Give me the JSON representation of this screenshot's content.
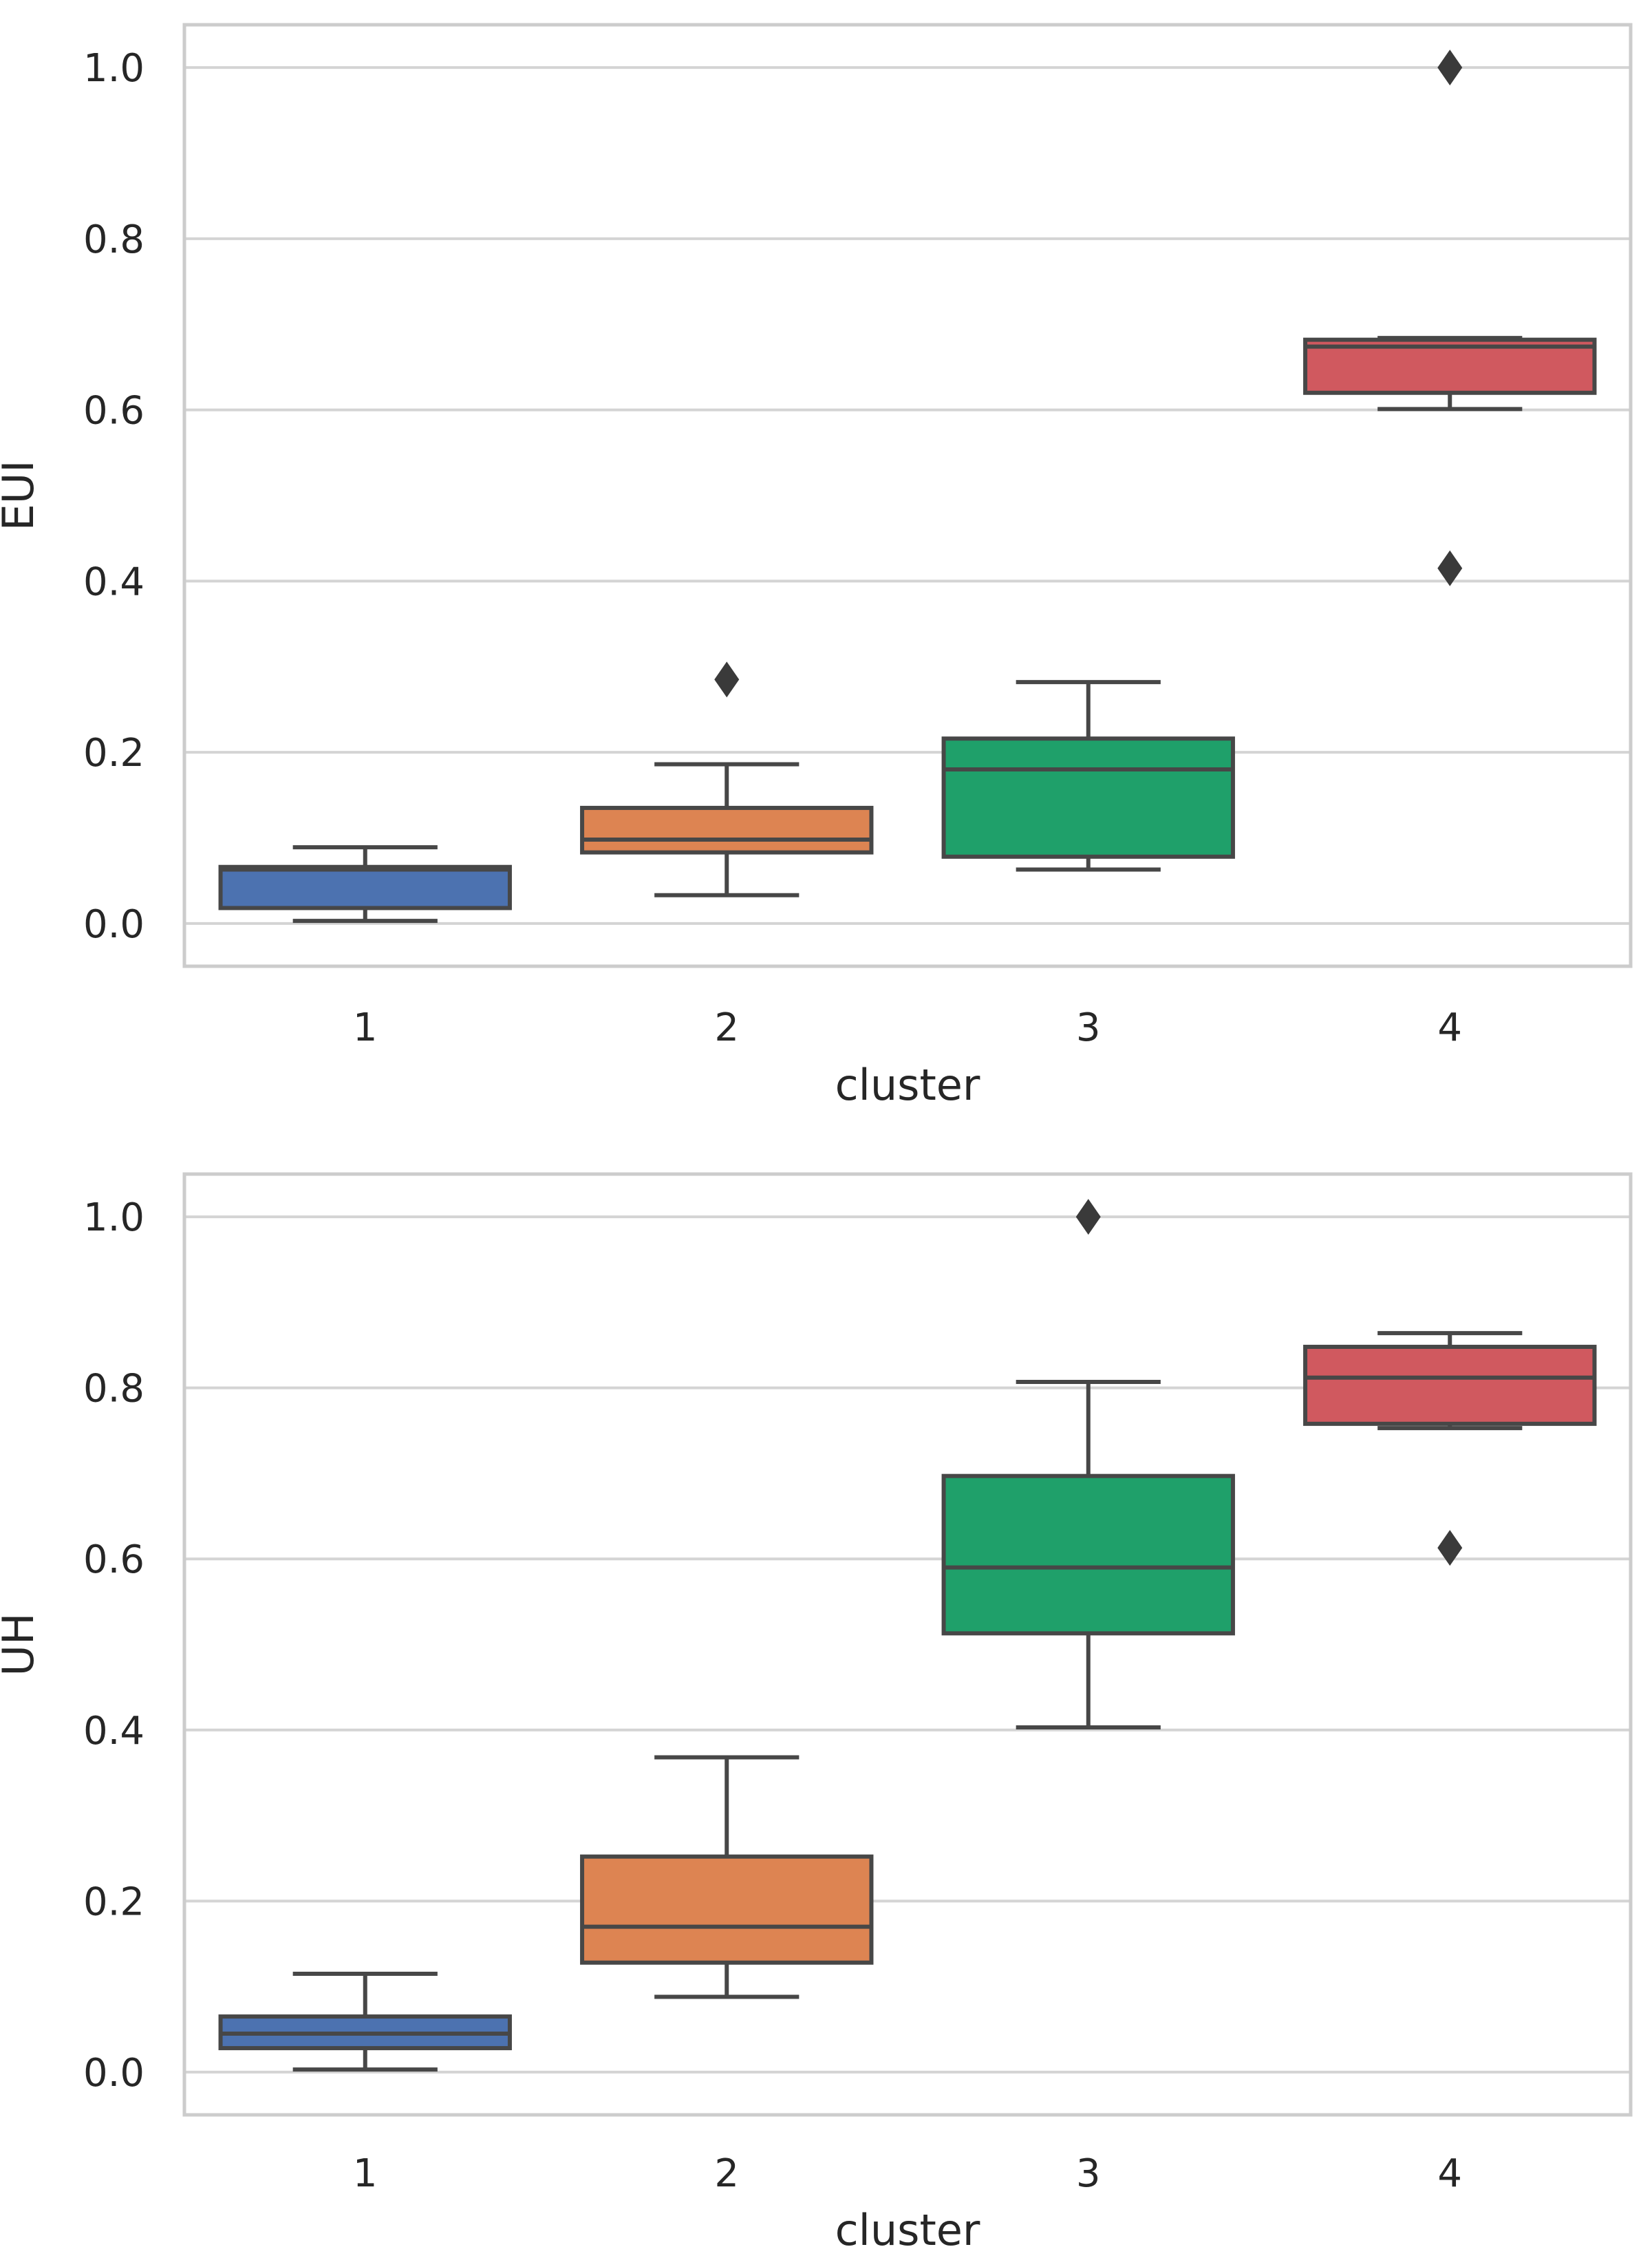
{
  "chart_data": [
    {
      "type": "box",
      "id": "eui",
      "title": "",
      "xlabel": "cluster",
      "ylabel": "EUI",
      "ylim": [
        -0.05,
        1.05
      ],
      "yticks": [
        0.0,
        0.2,
        0.4,
        0.6,
        0.8,
        1.0
      ],
      "ytick_labels": [
        "0.0",
        "0.2",
        "0.4",
        "0.6",
        "0.8",
        "1.0"
      ],
      "categories": [
        "1",
        "2",
        "3",
        "4"
      ],
      "grid": true,
      "boxes": [
        {
          "category": "1",
          "whisker_low": 0.003,
          "q1": 0.018,
          "median": 0.063,
          "q3": 0.066,
          "whisker_high": 0.089,
          "outliers": [],
          "color": "#4c72b0"
        },
        {
          "category": "2",
          "whisker_low": 0.033,
          "q1": 0.083,
          "median": 0.098,
          "q3": 0.135,
          "whisker_high": 0.186,
          "outliers": [
            0.285
          ],
          "color": "#dd8452"
        },
        {
          "category": "3",
          "whisker_low": 0.063,
          "q1": 0.078,
          "median": 0.18,
          "q3": 0.216,
          "whisker_high": 0.282,
          "outliers": [],
          "color": "#1fa06a"
        },
        {
          "category": "4",
          "whisker_low": 0.601,
          "q1": 0.62,
          "median": 0.674,
          "q3": 0.682,
          "whisker_high": 0.684,
          "outliers": [
            1.0,
            0.415
          ],
          "color": "#d0595f"
        }
      ]
    },
    {
      "type": "box",
      "id": "uh",
      "title": "",
      "xlabel": "cluster",
      "ylabel": "UH",
      "ylim": [
        -0.05,
        1.05
      ],
      "yticks": [
        0.0,
        0.2,
        0.4,
        0.6,
        0.8,
        1.0
      ],
      "ytick_labels": [
        "0.0",
        "0.2",
        "0.4",
        "0.6",
        "0.8",
        "1.0"
      ],
      "categories": [
        "1",
        "2",
        "3",
        "4"
      ],
      "grid": true,
      "boxes": [
        {
          "category": "1",
          "whisker_low": 0.003,
          "q1": 0.028,
          "median": 0.045,
          "q3": 0.065,
          "whisker_high": 0.115,
          "outliers": [],
          "color": "#4c72b0"
        },
        {
          "category": "2",
          "whisker_low": 0.088,
          "q1": 0.128,
          "median": 0.17,
          "q3": 0.252,
          "whisker_high": 0.368,
          "outliers": [],
          "color": "#dd8452"
        },
        {
          "category": "3",
          "whisker_low": 0.403,
          "q1": 0.513,
          "median": 0.59,
          "q3": 0.697,
          "whisker_high": 0.807,
          "outliers": [
            1.0
          ],
          "color": "#1fa06a"
        },
        {
          "category": "4",
          "whisker_low": 0.753,
          "q1": 0.758,
          "median": 0.812,
          "q3": 0.848,
          "whisker_high": 0.864,
          "outliers": [
            0.613
          ],
          "color": "#d0595f"
        }
      ]
    }
  ]
}
